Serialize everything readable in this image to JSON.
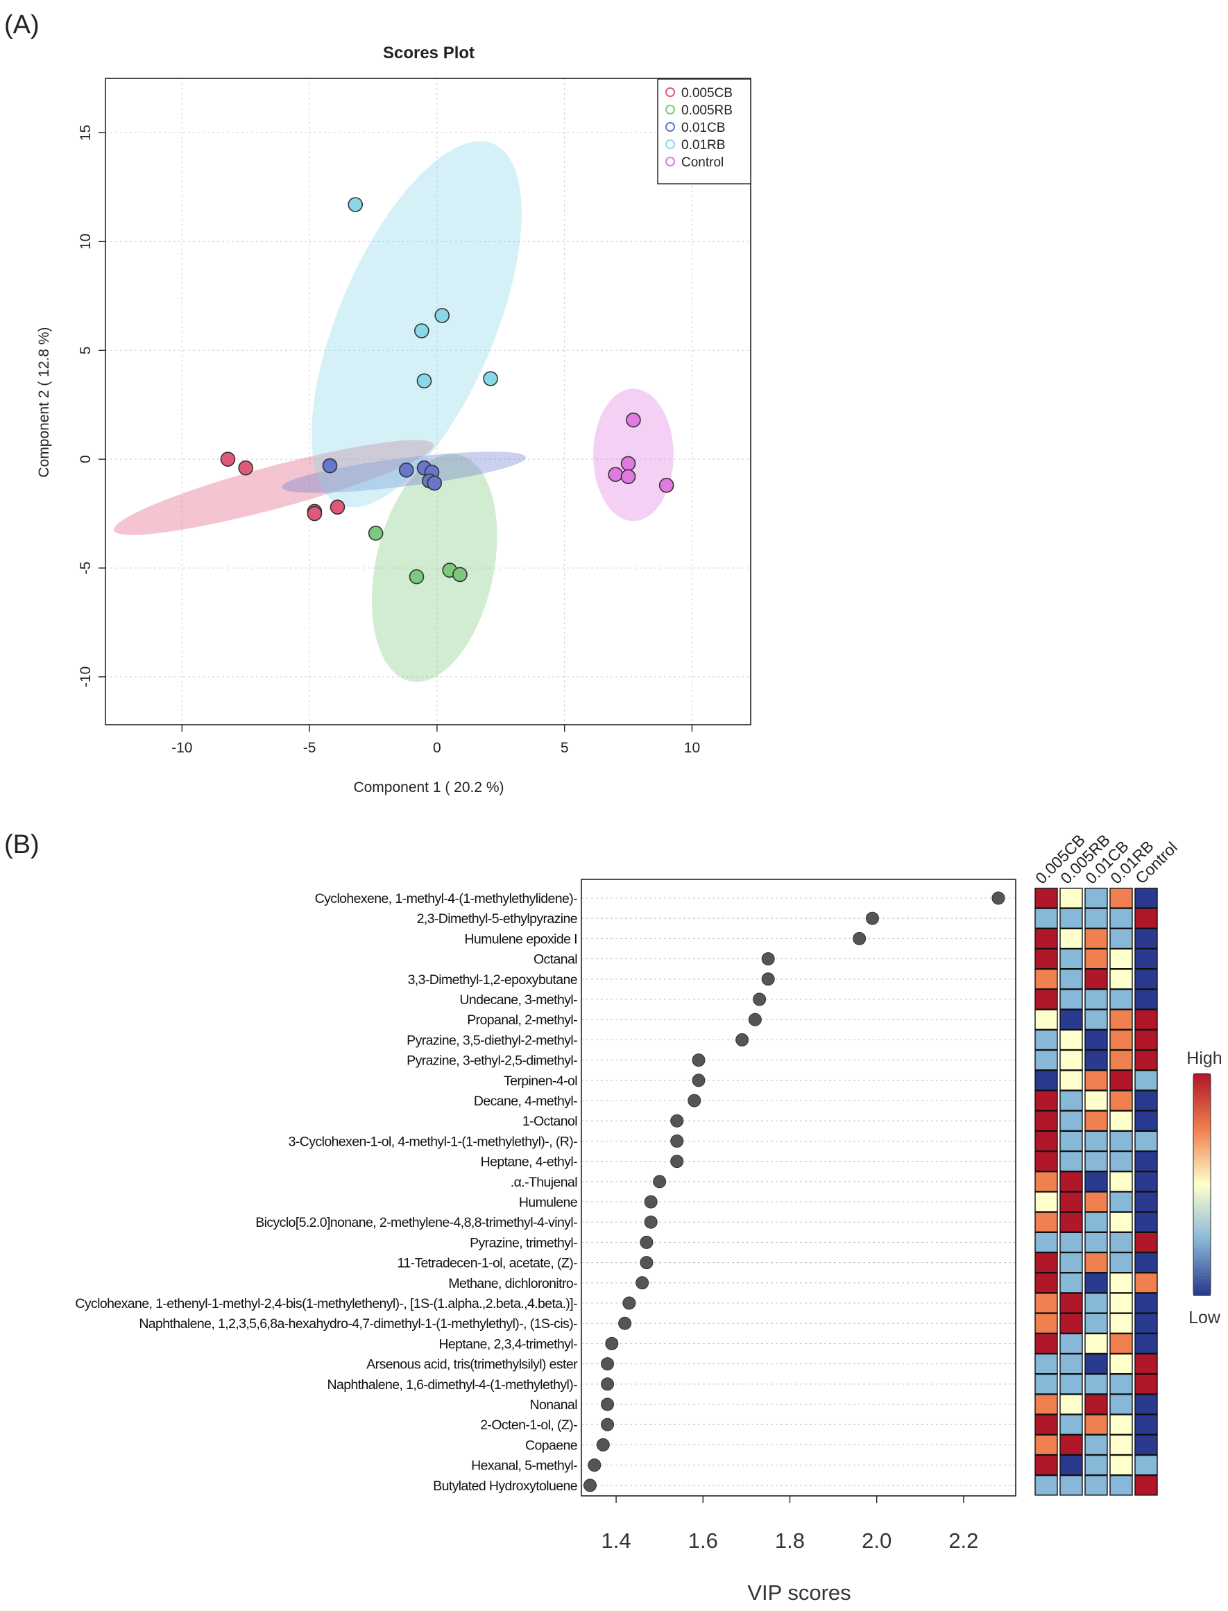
{
  "panels": {
    "a_label": "(A)",
    "b_label": "(B)"
  },
  "chart_data": [
    {
      "type": "scatter",
      "title": "Scores Plot",
      "xlabel": "Component 1 ( 20.2 %)",
      "ylabel": "Component 2 ( 12.8 %)",
      "xlim": [
        -13,
        12.3
      ],
      "ylim": [
        -12.2,
        17.5
      ],
      "xticks": [
        -10,
        -5,
        0,
        5,
        10
      ],
      "yticks": [
        -10,
        -5,
        0,
        5,
        10,
        15
      ],
      "grid": true,
      "legend_position": "top-right",
      "series": [
        {
          "name": "0.005CB",
          "color": "#e0587a",
          "points": [
            [
              -8.2,
              0.0
            ],
            [
              -7.5,
              -0.4
            ],
            [
              -4.8,
              -2.4
            ],
            [
              -4.8,
              -2.5
            ],
            [
              -3.9,
              -2.2
            ]
          ],
          "ellipse": {
            "center": [
              -6.4,
              -1.3
            ],
            "rx": 7.0,
            "ry": 0.9,
            "angle_deg": -15
          }
        },
        {
          "name": "0.005RB",
          "color": "#7cc87c",
          "points": [
            [
              -2.4,
              -3.4
            ],
            [
              -0.8,
              -5.4
            ],
            [
              0.5,
              -5.1
            ],
            [
              0.9,
              -5.3
            ]
          ],
          "ellipse": {
            "center": [
              -0.1,
              -5.0
            ],
            "rx": 2.5,
            "ry": 4.9,
            "angle_deg": 12
          }
        },
        {
          "name": "0.01CB",
          "color": "#6677cc",
          "points": [
            [
              -4.2,
              -0.3
            ],
            [
              -1.2,
              -0.5
            ],
            [
              -0.5,
              -0.4
            ],
            [
              -0.2,
              -0.6
            ],
            [
              -0.3,
              -1.0
            ],
            [
              -0.1,
              -1.1
            ]
          ],
          "ellipse": {
            "center": [
              -1.3,
              -0.6
            ],
            "rx": 5.2,
            "ry": 0.6,
            "angle_deg": -7
          }
        },
        {
          "name": "0.01RB",
          "color": "#88d8e8",
          "points": [
            [
              -3.2,
              11.7
            ],
            [
              -0.6,
              5.9
            ],
            [
              0.2,
              6.6
            ],
            [
              -0.5,
              3.6
            ],
            [
              2.1,
              3.7
            ]
          ],
          "ellipse": {
            "center": [
              -0.8,
              6.2
            ],
            "rx": 3.3,
            "ry": 8.3,
            "angle_deg": 23
          }
        },
        {
          "name": "Control",
          "color": "#e07ae0",
          "points": [
            [
              7.7,
              1.8
            ],
            [
              7.5,
              -0.2
            ],
            [
              7.0,
              -0.7
            ],
            [
              7.5,
              -0.8
            ],
            [
              9.0,
              -1.2
            ]
          ],
          "ellipse": {
            "center": [
              7.7,
              0.2
            ],
            "rx": 1.7,
            "ry": 2.8,
            "angle_deg": 0
          }
        }
      ]
    },
    {
      "type": "scatter",
      "xlabel": "VIP scores",
      "xlim": [
        1.32,
        2.32
      ],
      "xticks": [
        1.4,
        1.6,
        1.8,
        2.0,
        2.2
      ],
      "heatmap_columns": [
        "0.005CB",
        "0.005RB",
        "0.01CB",
        "0.01RB",
        "Control"
      ],
      "colorbar_labels": {
        "high": "High",
        "low": "Low"
      },
      "heatmap_palette": [
        "#2a3a8e",
        "#88b8d8",
        "#ffffcc",
        "#f08050",
        "#b0182a"
      ],
      "features": [
        {
          "name": "Cyclohexene, 1-methyl-4-(1-methylethylidene)-",
          "vip": 2.28,
          "heat": [
            4,
            2,
            1,
            3,
            0
          ]
        },
        {
          "name": "2,3-Dimethyl-5-ethylpyrazine",
          "vip": 1.99,
          "heat": [
            1,
            1,
            1,
            1,
            4
          ]
        },
        {
          "name": "Humulene epoxide I",
          "vip": 1.96,
          "heat": [
            4,
            2,
            3,
            1,
            0
          ]
        },
        {
          "name": "Octanal",
          "vip": 1.75,
          "heat": [
            4,
            1,
            3,
            2,
            0
          ]
        },
        {
          "name": "3,3-Dimethyl-1,2-epoxybutane",
          "vip": 1.75,
          "heat": [
            3,
            1,
            4,
            2,
            0
          ]
        },
        {
          "name": "Undecane, 3-methyl-",
          "vip": 1.73,
          "heat": [
            4,
            1,
            1,
            1,
            0
          ]
        },
        {
          "name": "Propanal, 2-methyl-",
          "vip": 1.72,
          "heat": [
            2,
            0,
            1,
            3,
            4
          ]
        },
        {
          "name": "Pyrazine, 3,5-diethyl-2-methyl-",
          "vip": 1.69,
          "heat": [
            1,
            2,
            0,
            3,
            4
          ]
        },
        {
          "name": "Pyrazine, 3-ethyl-2,5-dimethyl-",
          "vip": 1.59,
          "heat": [
            1,
            2,
            0,
            3,
            4
          ]
        },
        {
          "name": "Terpinen-4-ol",
          "vip": 1.59,
          "heat": [
            0,
            2,
            3,
            4,
            1
          ]
        },
        {
          "name": "Decane, 4-methyl-",
          "vip": 1.58,
          "heat": [
            4,
            1,
            2,
            3,
            0
          ]
        },
        {
          "name": "1-Octanol",
          "vip": 1.54,
          "heat": [
            4,
            1,
            3,
            2,
            0
          ]
        },
        {
          "name": "3-Cyclohexen-1-ol, 4-methyl-1-(1-methylethyl)-, (R)-",
          "vip": 1.54,
          "heat": [
            4,
            1,
            1,
            1,
            1
          ]
        },
        {
          "name": "Heptane, 4-ethyl-",
          "vip": 1.54,
          "heat": [
            4,
            1,
            1,
            1,
            0
          ]
        },
        {
          "name": ".α.-Thujenal",
          "vip": 1.5,
          "heat": [
            3,
            4,
            0,
            2,
            0
          ]
        },
        {
          "name": "Humulene",
          "vip": 1.48,
          "heat": [
            2,
            4,
            3,
            1,
            0
          ]
        },
        {
          "name": "Bicyclo[5.2.0]nonane, 2-methylene-4,8,8-trimethyl-4-vinyl-",
          "vip": 1.48,
          "heat": [
            3,
            4,
            1,
            2,
            0
          ]
        },
        {
          "name": "Pyrazine, trimethyl-",
          "vip": 1.47,
          "heat": [
            1,
            1,
            1,
            1,
            4
          ]
        },
        {
          "name": "11-Tetradecen-1-ol, acetate, (Z)-",
          "vip": 1.47,
          "heat": [
            4,
            1,
            3,
            1,
            0
          ]
        },
        {
          "name": "Methane, dichloronitro-",
          "vip": 1.46,
          "heat": [
            4,
            1,
            0,
            2,
            3
          ]
        },
        {
          "name": "Cyclohexane, 1-ethenyl-1-methyl-2,4-bis(1-methylethenyl)-, [1S-(1.alpha.,2.beta.,4.beta.)]-",
          "vip": 1.43,
          "heat": [
            3,
            4,
            1,
            2,
            0
          ]
        },
        {
          "name": "Naphthalene, 1,2,3,5,6,8a-hexahydro-4,7-dimethyl-1-(1-methylethyl)-, (1S-cis)-",
          "vip": 1.42,
          "heat": [
            3,
            4,
            1,
            2,
            0
          ]
        },
        {
          "name": "Heptane, 2,3,4-trimethyl-",
          "vip": 1.39,
          "heat": [
            4,
            1,
            2,
            3,
            0
          ]
        },
        {
          "name": "Arsenous acid, tris(trimethylsilyl) ester",
          "vip": 1.38,
          "heat": [
            1,
            1,
            0,
            2,
            4
          ]
        },
        {
          "name": "Naphthalene, 1,6-dimethyl-4-(1-methylethyl)-",
          "vip": 1.38,
          "heat": [
            1,
            1,
            1,
            1,
            4
          ]
        },
        {
          "name": "Nonanal",
          "vip": 1.38,
          "heat": [
            3,
            2,
            4,
            1,
            0
          ]
        },
        {
          "name": "2-Octen-1-ol, (Z)-",
          "vip": 1.38,
          "heat": [
            4,
            1,
            3,
            2,
            0
          ]
        },
        {
          "name": "Copaene",
          "vip": 1.37,
          "heat": [
            3,
            4,
            1,
            2,
            0
          ]
        },
        {
          "name": "Hexanal, 5-methyl-",
          "vip": 1.35,
          "heat": [
            4,
            0,
            1,
            2,
            1
          ]
        },
        {
          "name": "Butylated Hydroxytoluene",
          "vip": 1.34,
          "heat": [
            1,
            1,
            1,
            1,
            4
          ]
        }
      ]
    }
  ]
}
